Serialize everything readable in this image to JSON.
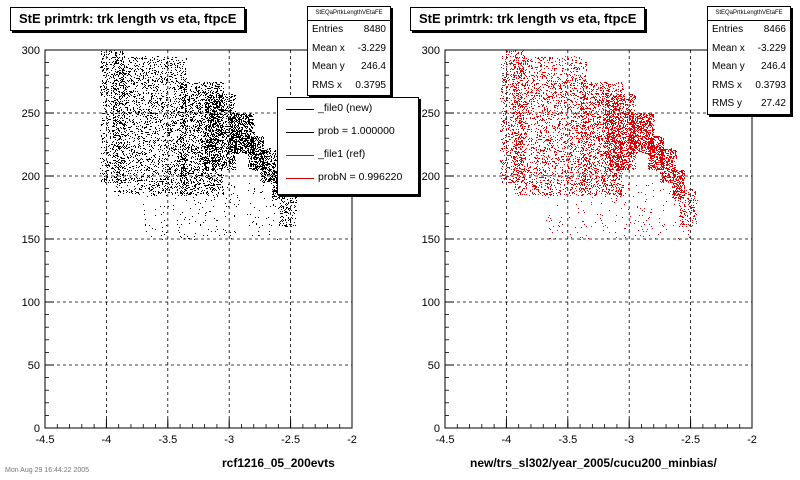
{
  "chart_data": [
    {
      "type": "scatter",
      "title": "StE primtrk: trk length vs eta, ftpcE",
      "xlabel": "rcf1216_05_200evts",
      "ylabel": "",
      "xlim": [
        -4.5,
        -2
      ],
      "ylim": [
        0,
        300
      ],
      "xticks": [
        "-4.5",
        "-4",
        "-3.5",
        "-3",
        "-2.5",
        "-2"
      ],
      "yticks": [
        "0",
        "50",
        "100",
        "150",
        "200",
        "250",
        "300"
      ],
      "grid": true,
      "marker_color": "#000000",
      "stats": {
        "name": "StEQaPrtkLengthVEtaFE",
        "rows": [
          {
            "label": "Entries",
            "value": "8480"
          },
          {
            "label": "Mean x",
            "value": "-3.229"
          },
          {
            "label": "Mean y",
            "value": "246.4"
          },
          {
            "label": "RMS x",
            "value": "0.3795"
          }
        ]
      },
      "legend": {
        "placement": "upper-right",
        "entries": [
          {
            "label": "_file0 (new)",
            "color": "#000000"
          },
          {
            "label": "prob = 1.000000",
            "color": "#000000"
          },
          {
            "label": "_file1 (ref)",
            "color": "#cc0000"
          },
          {
            "label": "probN = 0.996220",
            "color": "#cc0000"
          }
        ]
      },
      "distribution": [
        {
          "x": [
            -4.05,
            -3.85
          ],
          "y": [
            195,
            300
          ],
          "n": 650
        },
        {
          "x": [
            -3.95,
            -3.35
          ],
          "y": [
            185,
            295
          ],
          "n": 2100
        },
        {
          "x": [
            -3.4,
            -3.05
          ],
          "y": [
            185,
            275
          ],
          "n": 1500
        },
        {
          "x": [
            -3.2,
            -2.95
          ],
          "y": [
            205,
            265
          ],
          "n": 1000
        },
        {
          "x": [
            -3.0,
            -2.8
          ],
          "y": [
            218,
            250
          ],
          "n": 700
        },
        {
          "x": [
            -2.85,
            -2.72
          ],
          "y": [
            205,
            232
          ],
          "n": 380
        },
        {
          "x": [
            -2.75,
            -2.62
          ],
          "y": [
            195,
            222
          ],
          "n": 300
        },
        {
          "x": [
            -2.65,
            -2.55
          ],
          "y": [
            182,
            205
          ],
          "n": 220
        },
        {
          "x": [
            -2.6,
            -2.45
          ],
          "y": [
            160,
            190
          ],
          "n": 150
        },
        {
          "x": [
            -3.7,
            -2.5
          ],
          "y": [
            150,
            195
          ],
          "n": 220
        }
      ]
    },
    {
      "type": "scatter",
      "title": "StE primtrk: trk length vs eta, ftpcE",
      "xlabel": "new/trs_sl302/year_2005/cucu200_minbias/",
      "ylabel": "",
      "xlim": [
        -4.5,
        -2
      ],
      "ylim": [
        0,
        300
      ],
      "xticks": [
        "-4.5",
        "-4",
        "-3.5",
        "-3",
        "-2.5",
        "-2"
      ],
      "yticks": [
        "0",
        "50",
        "100",
        "150",
        "200",
        "250",
        "300"
      ],
      "grid": true,
      "marker_color": "#dd0000",
      "stats": {
        "name": "StEQaPrtkLengthVEtaFE",
        "rows": [
          {
            "label": "Entries",
            "value": "8466"
          },
          {
            "label": "Mean x",
            "value": "-3.229"
          },
          {
            "label": "Mean y",
            "value": "246.4"
          },
          {
            "label": "RMS x",
            "value": "0.3793"
          },
          {
            "label": "RMS y",
            "value": "27.42"
          }
        ]
      },
      "distribution": [
        {
          "x": [
            -4.05,
            -3.85
          ],
          "y": [
            195,
            300
          ],
          "n": 650
        },
        {
          "x": [
            -3.95,
            -3.35
          ],
          "y": [
            185,
            295
          ],
          "n": 2100
        },
        {
          "x": [
            -3.4,
            -3.05
          ],
          "y": [
            185,
            275
          ],
          "n": 1500
        },
        {
          "x": [
            -3.2,
            -2.95
          ],
          "y": [
            205,
            265
          ],
          "n": 1000
        },
        {
          "x": [
            -3.0,
            -2.8
          ],
          "y": [
            218,
            250
          ],
          "n": 700
        },
        {
          "x": [
            -2.85,
            -2.72
          ],
          "y": [
            205,
            232
          ],
          "n": 380
        },
        {
          "x": [
            -2.75,
            -2.62
          ],
          "y": [
            195,
            222
          ],
          "n": 300
        },
        {
          "x": [
            -2.65,
            -2.55
          ],
          "y": [
            182,
            205
          ],
          "n": 220
        },
        {
          "x": [
            -2.6,
            -2.45
          ],
          "y": [
            160,
            190
          ],
          "n": 150
        },
        {
          "x": [
            -3.7,
            -2.5
          ],
          "y": [
            150,
            195
          ],
          "n": 220
        }
      ]
    }
  ],
  "footer": {
    "stamp": "Mon Aug 29 16:44:22 2005"
  }
}
